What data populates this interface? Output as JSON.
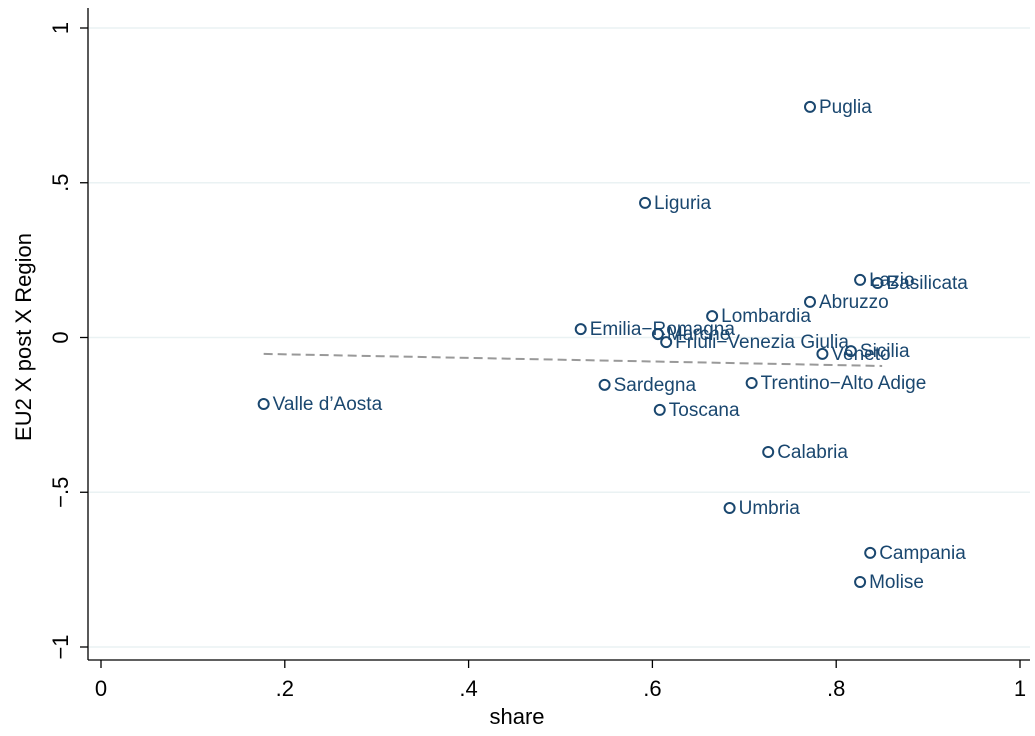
{
  "chart_data": {
    "type": "scatter",
    "x_label": "share",
    "y_label": "EU2 X post X Region",
    "xlim": [
      0,
      1
    ],
    "ylim": [
      -1,
      1
    ],
    "xticks": [
      0,
      {
        "value": 0.2,
        "label": ".2"
      },
      {
        "value": 0.4,
        "label": ".4"
      },
      {
        "value": 0.6,
        "label": ".6"
      },
      {
        "value": 0.8,
        "label": ".8"
      },
      1
    ],
    "yticks": [
      {
        "value": -1,
        "label": "−1"
      },
      {
        "value": -0.5,
        "label": "−.5"
      },
      0,
      {
        "value": 0.5,
        "label": ".5"
      },
      1
    ],
    "grid": true,
    "color": "#1a476f",
    "labels": [
      "Puglia",
      "Liguria",
      "Lazio",
      "Basilicata",
      "Abruzzo",
      "Lombardia",
      "Emilia−Romagna",
      "Marche",
      "Friuli−Venezia Giulia",
      "Veneto",
      "Sicilia",
      "Sardegna",
      "Trentino−Alto Adige",
      "Valle d’Aosta",
      "Toscana",
      "Calabria",
      "Umbria",
      "Campania",
      "Molise"
    ],
    "x": [
      0.7715,
      0.592,
      0.826,
      0.845,
      0.7715,
      0.665,
      0.522,
      0.606,
      0.615,
      0.785,
      0.816,
      0.548,
      0.708,
      0.177,
      0.608,
      0.726,
      0.684,
      0.837,
      0.826
    ],
    "values": [
      0.745,
      0.435,
      0.186,
      0.176,
      0.115,
      0.069,
      0.027,
      0.011,
      -0.015,
      -0.053,
      -0.044,
      -0.153,
      -0.147,
      -0.215,
      -0.234,
      -0.37,
      -0.551,
      -0.696,
      -0.79
    ],
    "fit": {
      "x": [
        0.177,
        0.85
      ],
      "values": [
        -0.053,
        -0.092
      ],
      "color": "#999999"
    }
  }
}
